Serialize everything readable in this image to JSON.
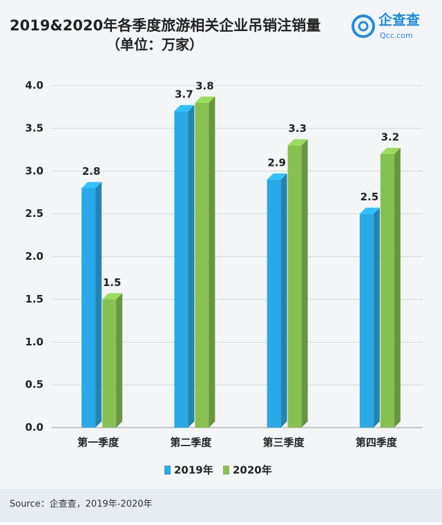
{
  "chart_data": {
    "type": "bar3d",
    "title": "2019&2020年各季度旅游相关企业吊销注销量",
    "subtitle": "（单位：万家）",
    "categories": [
      "第一季度",
      "第二季度",
      "第三季度",
      "第四季度"
    ],
    "series": [
      {
        "name": "2019年",
        "color": "#2aa9e6",
        "values": [
          2.8,
          3.7,
          2.9,
          2.5
        ]
      },
      {
        "name": "2020年",
        "color": "#86c051",
        "values": [
          1.5,
          3.8,
          3.3,
          3.2
        ]
      }
    ],
    "ylim": [
      0,
      4
    ],
    "yticks": [
      {
        "value": 0,
        "label": "0.0"
      },
      0.5,
      {
        "value": 1,
        "label": "1.0"
      },
      1.5,
      {
        "value": 2,
        "label": "2.0"
      },
      2.5,
      {
        "value": 3,
        "label": "3.0"
      },
      3.5,
      {
        "value": 4,
        "label": "4.0"
      }
    ],
    "grid": true,
    "source": "Source：企查查，2019年-2020年"
  },
  "logo": {
    "name": "企查查",
    "url": "Qcc.com"
  }
}
